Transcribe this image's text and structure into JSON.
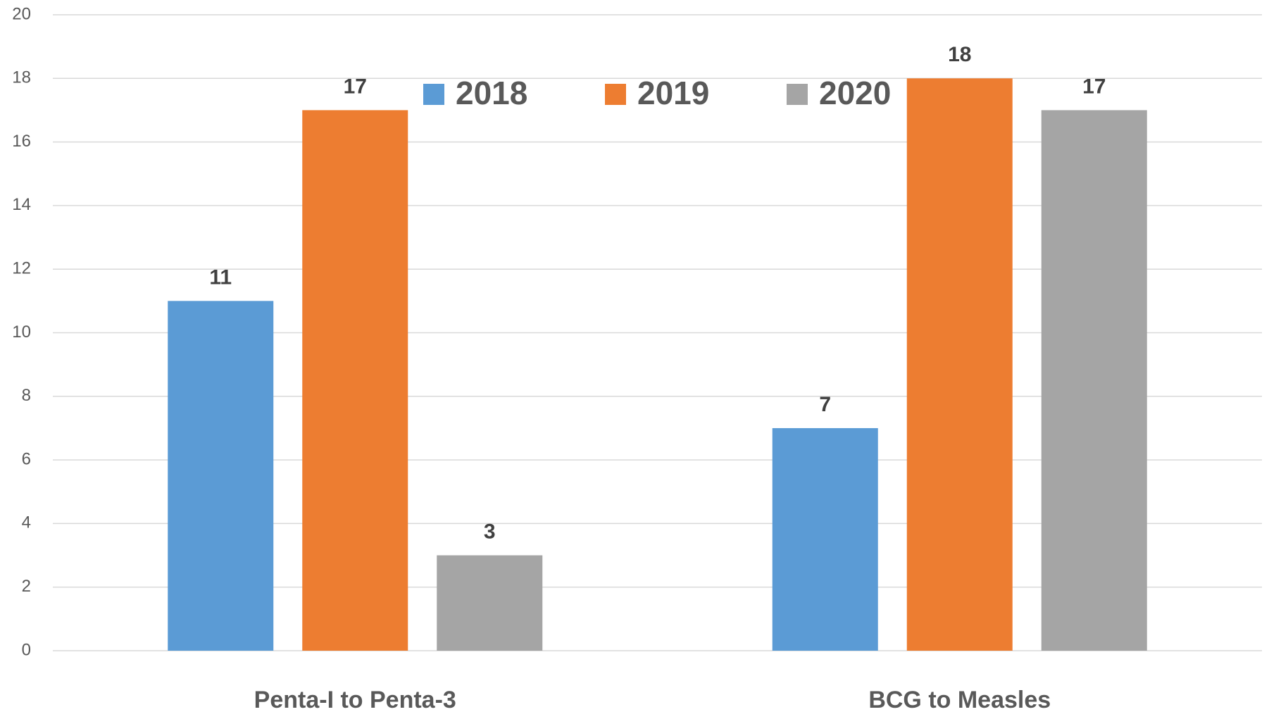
{
  "chart_data": {
    "type": "bar",
    "categories": [
      "Penta-I to Penta-3",
      "BCG to Measles"
    ],
    "series": [
      {
        "name": "2018",
        "color": "#5b9bd5",
        "values": [
          11,
          7
        ]
      },
      {
        "name": "2019",
        "color": "#ed7d31",
        "values": [
          17,
          18
        ]
      },
      {
        "name": "2020",
        "color": "#a5a5a5",
        "values": [
          3,
          17
        ]
      }
    ],
    "ylim": [
      0,
      20
    ],
    "yticks": [
      0,
      2,
      4,
      6,
      8,
      10,
      12,
      14,
      16,
      18,
      20
    ],
    "grid": true,
    "legend": "top"
  }
}
